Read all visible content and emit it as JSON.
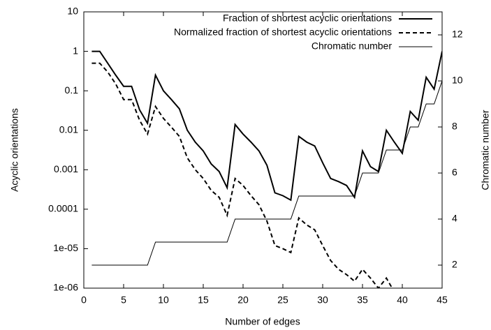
{
  "chart_data": {
    "type": "line",
    "xlabel": "Number of edges",
    "ylabel": "Acyclic orientations",
    "y2label": "Chromatic number",
    "x": [
      1,
      2,
      3,
      4,
      5,
      6,
      7,
      8,
      9,
      10,
      11,
      12,
      13,
      14,
      15,
      16,
      17,
      18,
      19,
      20,
      21,
      22,
      23,
      24,
      25,
      26,
      27,
      28,
      29,
      30,
      31,
      32,
      33,
      34,
      35,
      36,
      37,
      38,
      39,
      40,
      41,
      42,
      43,
      44,
      45
    ],
    "xlim": [
      0,
      45
    ],
    "xticks": [
      0,
      5,
      10,
      15,
      20,
      25,
      30,
      35,
      40,
      45
    ],
    "ylim": [
      1e-06,
      10
    ],
    "ylog": true,
    "yticks": [
      10,
      1,
      0.1,
      0.01,
      0.001,
      0.0001,
      {
        "value": 1e-05,
        "label": "1e-05"
      },
      {
        "value": 1e-06,
        "label": "1e-06"
      }
    ],
    "y2lim": [
      1,
      13
    ],
    "y2ticks": [
      2,
      4,
      6,
      8,
      10,
      12
    ],
    "legend": "upper right",
    "series": [
      {
        "name": "Fraction of shortest acyclic orientations",
        "color": "#000000",
        "style": "solid",
        "width": 2,
        "values": [
          1,
          1,
          0.5,
          0.25,
          0.13,
          0.13,
          0.033,
          0.015,
          0.25,
          0.1,
          0.06,
          0.035,
          0.01,
          0.005,
          0.003,
          0.0014,
          0.0009,
          0.00035,
          0.014,
          0.008,
          0.005,
          0.003,
          0.0013,
          0.00026,
          0.00022,
          0.00017,
          0.007,
          0.005,
          0.004,
          0.0015,
          0.0006,
          0.0005,
          0.0004,
          0.0002,
          0.003,
          0.0012,
          0.0009,
          0.01,
          0.005,
          0.0026,
          0.03,
          0.018,
          0.22,
          0.11,
          1
        ]
      },
      {
        "name": "Normalized fraction of shortest acyclic orientations",
        "color": "#000000",
        "style": "dashed",
        "width": 2,
        "values": [
          0.5,
          0.5,
          0.3,
          0.15,
          0.06,
          0.06,
          0.018,
          0.008,
          0.04,
          0.02,
          0.012,
          0.007,
          0.002,
          0.001,
          0.0006,
          0.0003,
          0.0002,
          7e-05,
          0.0006,
          0.0004,
          0.00022,
          0.00013,
          5e-05,
          1.2e-05,
          1e-05,
          8e-06,
          6e-05,
          4e-05,
          3e-05,
          1.2e-05,
          5e-06,
          3e-06,
          2.2e-06,
          1.5e-06,
          3e-06,
          1.8e-06,
          1e-06,
          1.8e-06,
          8e-07,
          null,
          null,
          null,
          null,
          null,
          null
        ]
      },
      {
        "name": "Chromatic number",
        "color": "#000000",
        "style": "solid",
        "width": 1,
        "axis": "y2",
        "values": [
          2,
          2,
          2,
          2,
          2,
          2,
          2,
          2,
          3,
          3,
          3,
          3,
          3,
          3,
          3,
          3,
          3,
          3,
          4,
          4,
          4,
          4,
          4,
          4,
          4,
          4,
          5,
          5,
          5,
          5,
          5,
          5,
          5,
          5,
          6,
          6,
          6,
          7,
          7,
          7,
          8,
          8,
          9,
          9,
          10
        ]
      }
    ]
  }
}
